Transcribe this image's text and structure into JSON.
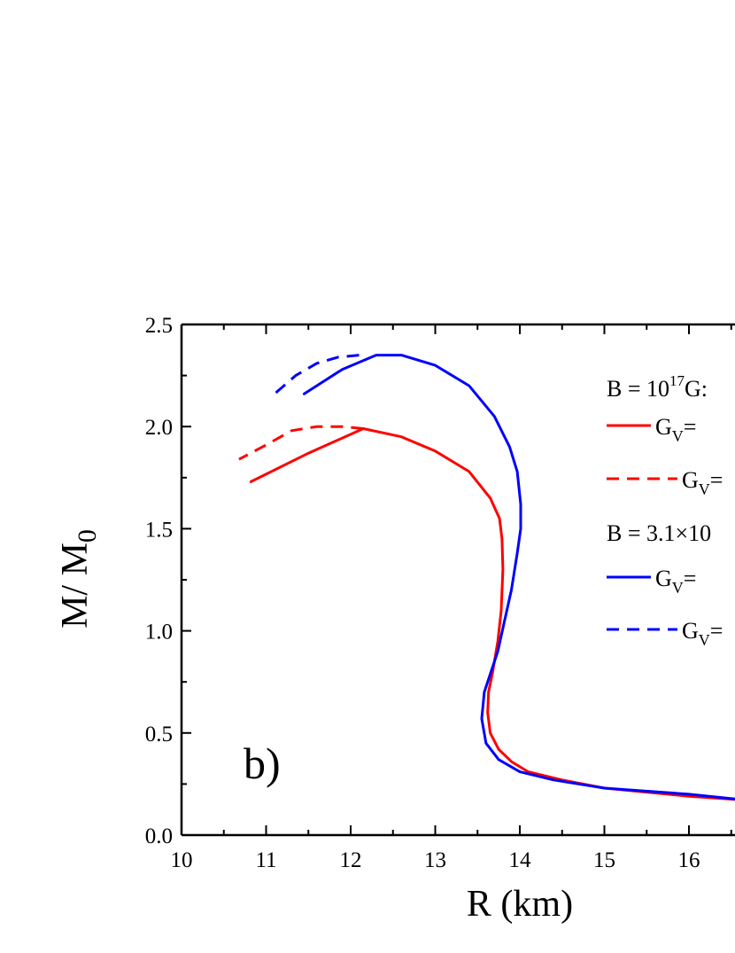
{
  "chart_data": {
    "type": "line",
    "panel_label": "b)",
    "xlabel": "R (km)",
    "ylabel": {
      "main": "M/ M",
      "sub": "0"
    },
    "xlim": [
      10,
      16.7
    ],
    "ylim": [
      0,
      2.5
    ],
    "x_ticks": [
      "10",
      "11",
      "12",
      "13",
      "14",
      "15",
      "16"
    ],
    "y_ticks": [
      "0.0",
      "0.5",
      "1.0",
      "1.5",
      "2.0",
      "2.5"
    ],
    "legend_placement": "top-right",
    "legend": {
      "group1": {
        "prefix": "B = 10",
        "sup": "17",
        "rest": "G:"
      },
      "item1": {
        "main": "G",
        "sub": "V",
        "rest": "="
      },
      "item2": {
        "main": "G",
        "sub": "V",
        "rest": "="
      },
      "group2": {
        "text": "B = 3.1×10"
      },
      "item3": {
        "main": "G",
        "sub": "V",
        "rest": "="
      },
      "item4": {
        "main": "G",
        "sub": "V",
        "rest": "="
      }
    },
    "colors": {
      "red": "#ff0000",
      "blue": "#0000ff"
    },
    "series": [
      {
        "color": "#ff0000",
        "style": "solid",
        "x": [
          16.7,
          16.0,
          15.0,
          14.5,
          14.1,
          13.9,
          13.75,
          13.65,
          13.62,
          13.63,
          13.68,
          13.74,
          13.78,
          13.8,
          13.79,
          13.76,
          13.65,
          13.4,
          13.0,
          12.6,
          12.15,
          11.5,
          10.82
        ],
        "y": [
          0.17,
          0.19,
          0.23,
          0.27,
          0.31,
          0.36,
          0.42,
          0.5,
          0.6,
          0.7,
          0.8,
          0.95,
          1.1,
          1.3,
          1.45,
          1.55,
          1.65,
          1.78,
          1.88,
          1.95,
          1.99,
          1.87,
          1.73
        ]
      },
      {
        "color": "#ff0000",
        "style": "dashed",
        "x": [
          12.15,
          11.9,
          11.6,
          11.3,
          11.0,
          10.68
        ],
        "y": [
          1.99,
          2.0,
          2.0,
          1.98,
          1.91,
          1.84
        ]
      },
      {
        "color": "#0000ff",
        "style": "solid",
        "x": [
          16.7,
          16.0,
          15.0,
          14.4,
          14.0,
          13.75,
          13.6,
          13.55,
          13.58,
          13.66,
          13.74,
          13.82,
          13.9,
          13.97,
          14.01,
          14.01,
          13.97,
          13.88,
          13.7,
          13.4,
          13.0,
          12.6,
          12.3,
          11.9,
          11.45
        ],
        "y": [
          0.17,
          0.2,
          0.23,
          0.27,
          0.31,
          0.37,
          0.45,
          0.57,
          0.7,
          0.8,
          0.9,
          1.05,
          1.2,
          1.38,
          1.5,
          1.62,
          1.78,
          1.9,
          2.05,
          2.2,
          2.3,
          2.35,
          2.35,
          2.28,
          2.16
        ]
      },
      {
        "color": "#0000ff",
        "style": "dashed",
        "x": [
          12.1,
          11.85,
          11.6,
          11.35,
          11.1
        ],
        "y": [
          2.35,
          2.34,
          2.31,
          2.25,
          2.16
        ]
      }
    ]
  }
}
